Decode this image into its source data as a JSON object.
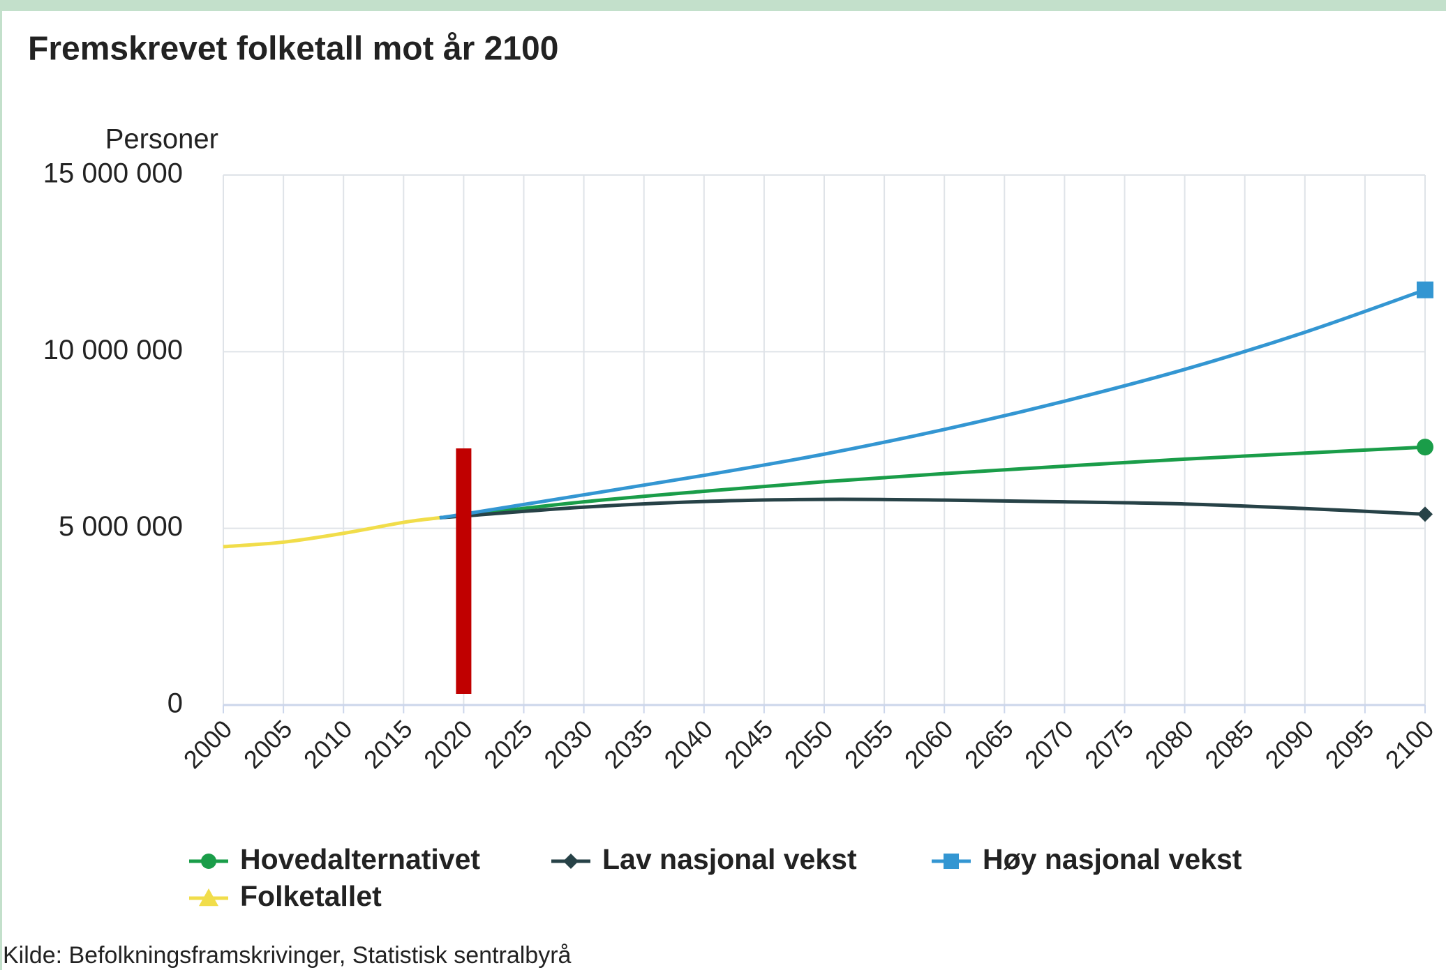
{
  "chart_data": {
    "type": "line",
    "title": "Fremskrevet folketall mot år 2100",
    "y_label": "Personer",
    "source": "Kilde: Befolkningsframskrivinger, Statistisk sentralbyrå",
    "xlim": [
      2000,
      2100
    ],
    "xticks": [
      2000,
      2005,
      2010,
      2015,
      2020,
      2025,
      2030,
      2035,
      2040,
      2045,
      2050,
      2055,
      2060,
      2065,
      2070,
      2075,
      2080,
      2085,
      2090,
      2095,
      2100
    ],
    "ylim": [
      0,
      15000000
    ],
    "yticks": [
      0,
      {
        "value": 5000000,
        "label": "5 000 000"
      },
      {
        "value": 10000000,
        "label": "10 000 000"
      },
      {
        "value": 15000000,
        "label": "15 000 000"
      }
    ],
    "grid": true,
    "markers": [
      {
        "x": 2020,
        "color": "#c00000"
      }
    ],
    "series": [
      {
        "name": "Hovedalternativet",
        "color": "#1a9d49",
        "marker": "circle",
        "x": [
          2018,
          2020,
          2030,
          2040,
          2050,
          2060,
          2070,
          2080,
          2090,
          2100
        ],
        "values": [
          5300000,
          5370000,
          5750000,
          6050000,
          6320000,
          6550000,
          6760000,
          6960000,
          7130000,
          7300000
        ]
      },
      {
        "name": "Lav nasjonal vekst",
        "color": "#274247",
        "marker": "diamond",
        "x": [
          2018,
          2020,
          2030,
          2040,
          2050,
          2060,
          2070,
          2080,
          2090,
          2100
        ],
        "values": [
          5300000,
          5350000,
          5600000,
          5760000,
          5820000,
          5800000,
          5750000,
          5690000,
          5560000,
          5400000
        ]
      },
      {
        "name": "Høy nasjonal vekst",
        "color": "#3396d2",
        "marker": "square",
        "x": [
          2018,
          2020,
          2030,
          2040,
          2050,
          2060,
          2070,
          2080,
          2090,
          2100
        ],
        "values": [
          5300000,
          5400000,
          5950000,
          6500000,
          7100000,
          7800000,
          8600000,
          9500000,
          10550000,
          11750000
        ]
      },
      {
        "name": "Folketallet",
        "color": "#f1dd4a",
        "marker": "triangle",
        "x": [
          2000,
          2005,
          2010,
          2015,
          2018
        ],
        "values": [
          4480000,
          4610000,
          4860000,
          5170000,
          5300000
        ]
      }
    ]
  }
}
